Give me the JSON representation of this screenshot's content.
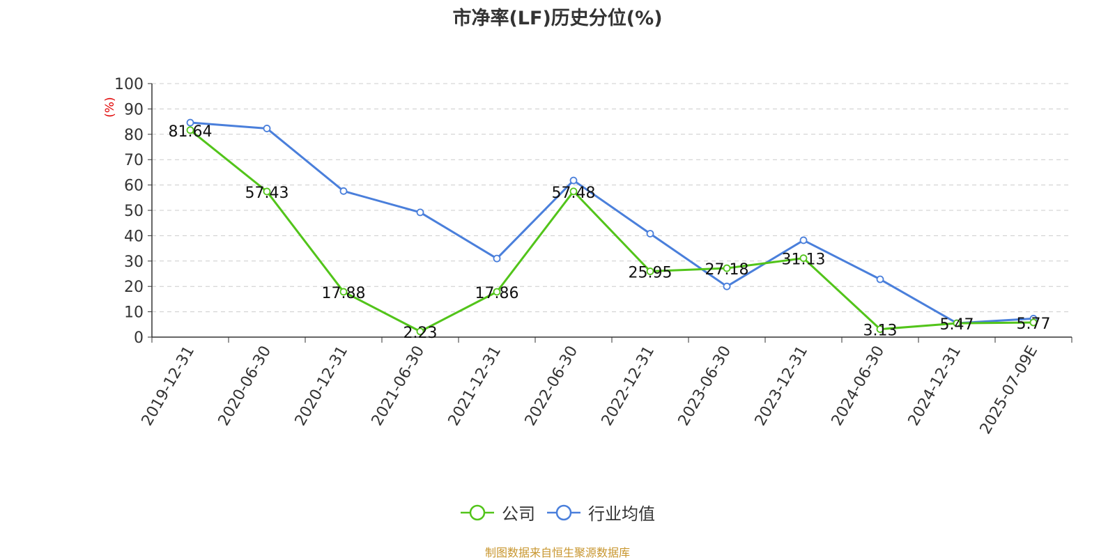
{
  "chart_data": {
    "type": "line",
    "title": "市净率(LF)历史分位(%)",
    "ylabel": "(%)",
    "ylim": [
      0,
      100
    ],
    "yticks": [
      0,
      10,
      20,
      30,
      40,
      50,
      60,
      70,
      80,
      90,
      100
    ],
    "grid": true,
    "legend_position": "bottom",
    "categories": [
      "2019-12-31",
      "2020-06-30",
      "2020-12-31",
      "2021-06-30",
      "2021-12-31",
      "2022-06-30",
      "2022-12-31",
      "2023-06-30",
      "2023-12-31",
      "2024-06-30",
      "2024-12-31",
      "2025-07-09E"
    ],
    "series": [
      {
        "name": "公司",
        "color": "#52c41a",
        "show_labels": true,
        "values": [
          81.64,
          57.43,
          17.88,
          2.23,
          17.86,
          57.48,
          25.95,
          27.18,
          31.13,
          3.13,
          5.47,
          5.77
        ]
      },
      {
        "name": "行业均值",
        "color": "#4a7fdb",
        "show_labels": false,
        "values": [
          84.6,
          82.3,
          57.6,
          49.2,
          31.0,
          61.8,
          40.8,
          20.0,
          38.2,
          22.8,
          5.5,
          7.3
        ]
      }
    ]
  },
  "source": "制图数据来自恒生聚源数据库"
}
